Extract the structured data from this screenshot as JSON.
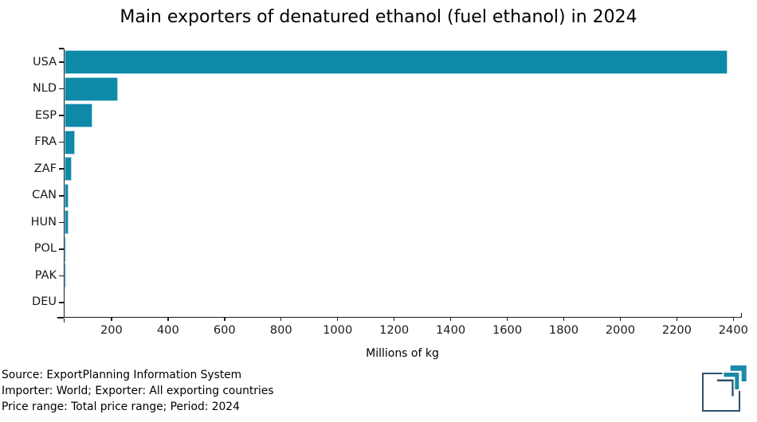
{
  "title": "Main exporters of denatured ethanol (fuel ethanol) in 2024",
  "chart_data": {
    "type": "bar",
    "orientation": "horizontal",
    "categories": [
      "USA",
      "NLD",
      "ESP",
      "FRA",
      "ZAF",
      "CAN",
      "HUN",
      "POL",
      "PAK",
      "DEU"
    ],
    "values": [
      2380,
      224,
      134,
      72,
      59,
      49,
      48,
      40,
      38,
      34
    ],
    "title": "Main exporters of denatured ethanol (fuel ethanol) in 2024",
    "xlabel": "Millions of kg",
    "ylabel": "",
    "xlim": [
      34,
      2430
    ],
    "xticks": [
      200,
      400,
      600,
      800,
      1000,
      1200,
      1400,
      1600,
      1800,
      2000,
      2200,
      2400
    ],
    "grid": false,
    "legend": "none",
    "bar_color": "#0e89a7",
    "bar_edge_color": "#a6d7e6"
  },
  "footer": {
    "line1": "Source: ExportPlanning Information System",
    "line2": "Importer: World; Exporter: All exporting countries",
    "line3": "Price range: Total price range; Period: 2024"
  },
  "logo": {
    "name": "exportplanning-logo",
    "teal": "#1a8ba8",
    "dark": "#31506a"
  }
}
